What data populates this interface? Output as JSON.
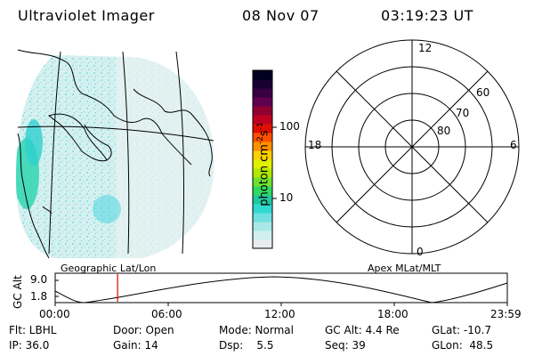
{
  "header": {
    "title": "Ultraviolet Imager",
    "date": "08 Nov 07",
    "time": "03:19:23 UT"
  },
  "colorbar": {
    "label_prefix": "photon cm",
    "label_exp1": "-2",
    "label_mid": "s",
    "label_exp2": "-1",
    "ticks": [
      "100",
      "10"
    ],
    "colors": [
      "#e8ecec",
      "#d0f0f0",
      "#a8e8e8",
      "#70e0e0",
      "#30d8d0",
      "#20c8a0",
      "#30d860",
      "#70e030",
      "#b0e800",
      "#e0f000",
      "#ffd000",
      "#ff9000",
      "#ff5000",
      "#e01000",
      "#c00020",
      "#900030",
      "#600050",
      "#380040",
      "#180030",
      "#000020"
    ],
    "tick_levels": [
      0.68,
      0.28
    ]
  },
  "geo_panel": {
    "label": "Geographic Lat/Lon"
  },
  "polar": {
    "label": "Apex MLat/MLT",
    "mlt_labels": [
      "12",
      "18",
      "6",
      "0"
    ],
    "lat_labels": [
      "60",
      "70",
      "80"
    ]
  },
  "altitude_plot": {
    "ylabel": "GC Alt",
    "yticks": [
      "9.0",
      "1.8"
    ],
    "xticks": [
      "00:00",
      "06:00",
      "12:00",
      "18:00",
      "23:59"
    ],
    "marker_time_fraction": 0.138,
    "marker_color": "#e00000"
  },
  "info": {
    "flt": "Flt: LBHL",
    "door": "Door: Open",
    "mode": "Mode: Normal",
    "gc_alt": "GC Alt: 4.4 Re",
    "glat": "GLat: -10.7",
    "ip": "IP: 36.0",
    "gain": "Gain: 14",
    "dsp": "Dsp:    5.5",
    "seq": "Seq: 39",
    "glon": "GLon:  48.5"
  }
}
